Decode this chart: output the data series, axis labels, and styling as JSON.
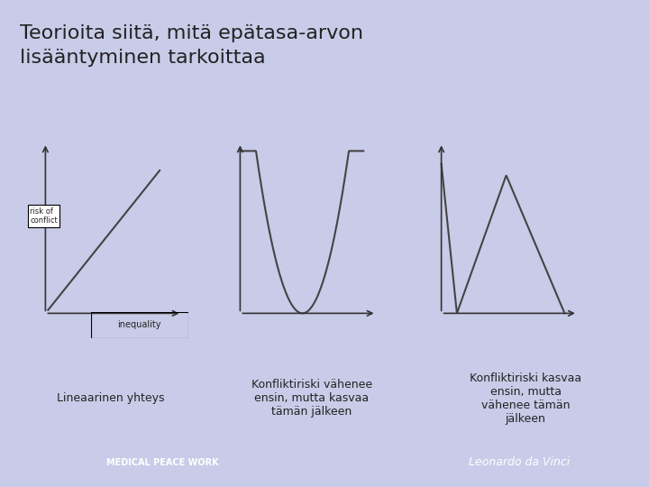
{
  "title_line1": "Teorioita siitä, mitä epätasa-arvon",
  "title_line2": "lisääntyminen tarkoittaa",
  "title_bg": "#c8cce8",
  "main_bg": "#c8cce8",
  "chart_bg": "#f2f2f2",
  "footer_bg": "#5a6a9a",
  "label1": "Lineaarinen yhteys",
  "label2": "Konfliktiriski vähenee\nensin, mutta kasvaa\ntämän jälkeen",
  "label3": "Konfliktiriski kasvaa\nensin, mutta\nvähenee tämän\njälkeen",
  "ylabel": "risk of\nconflict",
  "xlabel": "inequality",
  "font_color": "#222222",
  "line_color": "#444444",
  "arrow_color": "#333333"
}
